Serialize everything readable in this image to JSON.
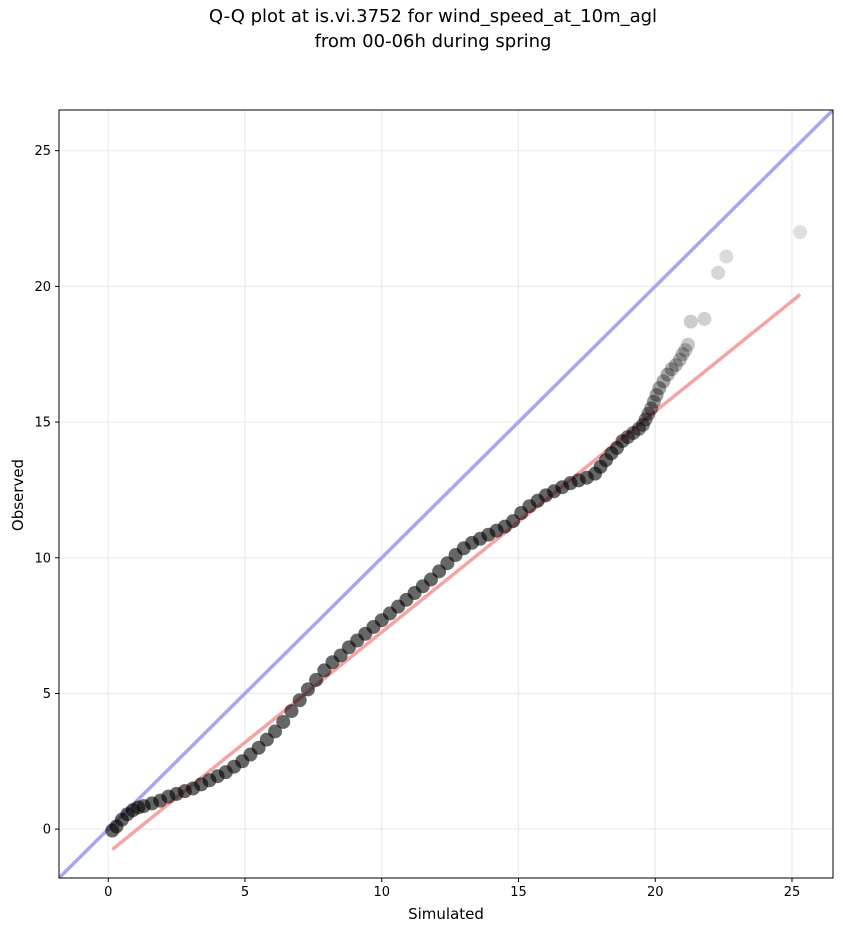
{
  "chart_data": {
    "type": "scatter",
    "title_lines": [
      "Q-Q plot at is.vi.3752 for wind_speed_at_10m_agl",
      "from 00-06h during spring"
    ],
    "xlabel": "Simulated",
    "ylabel": "Observed",
    "xlim": [
      -1.8,
      26.5
    ],
    "ylim": [
      -1.8,
      26.5
    ],
    "xticks": [
      0,
      5,
      10,
      15,
      20,
      25
    ],
    "yticks": [
      0,
      5,
      10,
      15,
      20,
      25
    ],
    "grid": true,
    "reference_line": {
      "kind": "identity",
      "color": "#a6a6f2"
    },
    "fit_line": {
      "from": [
        0.15,
        -0.75
      ],
      "to": [
        25.3,
        19.7
      ],
      "color": "#f5a3a3"
    },
    "marker_color": "#000000",
    "points": [
      [
        0.15,
        -0.05
      ],
      [
        0.3,
        0.1
      ],
      [
        0.5,
        0.35
      ],
      [
        0.7,
        0.55
      ],
      [
        0.9,
        0.7
      ],
      [
        1.1,
        0.8
      ],
      [
        1.3,
        0.85
      ],
      [
        1.6,
        0.95
      ],
      [
        1.9,
        1.05
      ],
      [
        2.2,
        1.2
      ],
      [
        2.5,
        1.3
      ],
      [
        2.8,
        1.4
      ],
      [
        3.1,
        1.5
      ],
      [
        3.4,
        1.65
      ],
      [
        3.7,
        1.8
      ],
      [
        4.0,
        1.95
      ],
      [
        4.3,
        2.1
      ],
      [
        4.6,
        2.3
      ],
      [
        4.9,
        2.5
      ],
      [
        5.2,
        2.75
      ],
      [
        5.5,
        3.0
      ],
      [
        5.8,
        3.3
      ],
      [
        6.1,
        3.6
      ],
      [
        6.4,
        3.95
      ],
      [
        6.7,
        4.35
      ],
      [
        7.0,
        4.75
      ],
      [
        7.3,
        5.15
      ],
      [
        7.6,
        5.5
      ],
      [
        7.9,
        5.85
      ],
      [
        8.2,
        6.15
      ],
      [
        8.5,
        6.4
      ],
      [
        8.8,
        6.7
      ],
      [
        9.1,
        6.95
      ],
      [
        9.4,
        7.2
      ],
      [
        9.7,
        7.45
      ],
      [
        10.0,
        7.7
      ],
      [
        10.3,
        7.95
      ],
      [
        10.6,
        8.2
      ],
      [
        10.9,
        8.45
      ],
      [
        11.2,
        8.7
      ],
      [
        11.5,
        8.95
      ],
      [
        11.8,
        9.2
      ],
      [
        12.1,
        9.5
      ],
      [
        12.4,
        9.8
      ],
      [
        12.7,
        10.1
      ],
      [
        13.0,
        10.35
      ],
      [
        13.3,
        10.55
      ],
      [
        13.6,
        10.7
      ],
      [
        13.9,
        10.85
      ],
      [
        14.2,
        11.0
      ],
      [
        14.5,
        11.15
      ],
      [
        14.8,
        11.35
      ],
      [
        15.1,
        11.65
      ],
      [
        15.4,
        11.9
      ],
      [
        15.7,
        12.1
      ],
      [
        16.0,
        12.3
      ],
      [
        16.3,
        12.45
      ],
      [
        16.6,
        12.6
      ],
      [
        16.9,
        12.75
      ],
      [
        17.2,
        12.85
      ],
      [
        17.5,
        12.95
      ],
      [
        17.8,
        13.1
      ],
      [
        18.0,
        13.35
      ],
      [
        18.2,
        13.6
      ],
      [
        18.4,
        13.85
      ],
      [
        18.6,
        14.05
      ],
      [
        18.8,
        14.3
      ],
      [
        19.0,
        14.45
      ],
      [
        19.2,
        14.6
      ],
      [
        19.4,
        14.75
      ],
      [
        19.55,
        14.9
      ],
      [
        19.65,
        15.1
      ],
      [
        19.75,
        15.3
      ],
      [
        19.85,
        15.5
      ],
      [
        19.95,
        15.75
      ],
      [
        20.05,
        16.0
      ],
      [
        20.15,
        16.25
      ],
      [
        20.3,
        16.5
      ],
      [
        20.45,
        16.75
      ],
      [
        20.6,
        16.95
      ],
      [
        20.75,
        17.1
      ],
      [
        20.9,
        17.3
      ],
      [
        21.0,
        17.5
      ],
      [
        21.1,
        17.65
      ],
      [
        21.2,
        17.85
      ],
      [
        21.3,
        18.7
      ],
      [
        21.8,
        18.8
      ],
      [
        22.3,
        20.5
      ],
      [
        22.6,
        21.1
      ],
      [
        25.3,
        22.0
      ]
    ]
  }
}
